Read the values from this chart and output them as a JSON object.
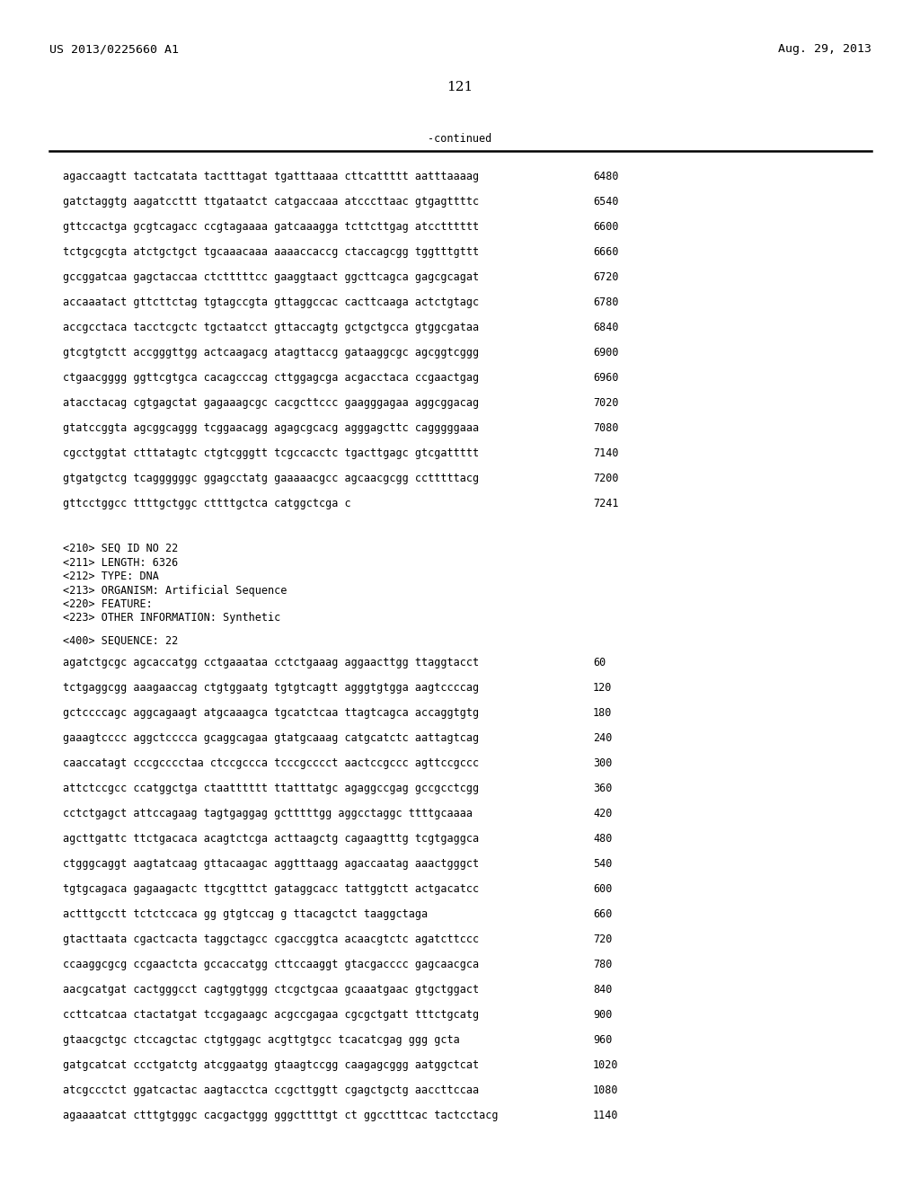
{
  "header_left": "US 2013/0225660 A1",
  "header_right": "Aug. 29, 2013",
  "page_number": "121",
  "continued_text": "-continued",
  "background_color": "#ffffff",
  "text_color": "#000000",
  "font_size_header": 9.5,
  "font_size_body": 8.5,
  "font_size_page": 11.0,
  "sequence_lines_top": [
    [
      "agaccaagtt tactcatata tactttagat tgatttaaaa cttcattttt aatttaaaag",
      "6480"
    ],
    [
      "gatctaggtg aagatccttt ttgataatct catgaccaaa atcccttaac gtgagttttc",
      "6540"
    ],
    [
      "gttccactga gcgtcagacc ccgtagaaaa gatcaaagga tcttcttgag atcctttttt",
      "6600"
    ],
    [
      "tctgcgcgta atctgctgct tgcaaacaaa aaaaccaccg ctaccagcgg tggtttgttt",
      "6660"
    ],
    [
      "gccggatcaa gagctaccaa ctctttttcc gaaggtaact ggcttcagca gagcgcagat",
      "6720"
    ],
    [
      "accaaatact gttcttctag tgtagccgta gttaggccac cacttcaaga actctgtagc",
      "6780"
    ],
    [
      "accgcctaca tacctcgctc tgctaatcct gttaccagtg gctgctgcca gtggcgataa",
      "6840"
    ],
    [
      "gtcgtgtctt accgggttgg actcaagacg atagttaccg gataaggcgc agcggtcggg",
      "6900"
    ],
    [
      "ctgaacgggg ggttcgtgca cacagcccag cttggagcga acgacctaca ccgaactgag",
      "6960"
    ],
    [
      "atacctacag cgtgagctat gagaaagcgc cacgcttccc gaagggagaa aggcggacag",
      "7020"
    ],
    [
      "gtatccggta agcggcaggg tcggaacagg agagcgcacg agggagcttc cagggggaaa",
      "7080"
    ],
    [
      "cgcctggtat ctttatagtc ctgtcgggtt tcgccacctc tgacttgagc gtcgattttt",
      "7140"
    ],
    [
      "gtgatgctcg tcaggggggc ggagcctatg gaaaaacgcc agcaacgcgg cctttttacg",
      "7200"
    ],
    [
      "gttcctggcc ttttgctggc cttttgctca catggctcga c",
      "7241"
    ]
  ],
  "metadata_lines": [
    "<210> SEQ ID NO 22",
    "<211> LENGTH: 6326",
    "<212> TYPE: DNA",
    "<213> ORGANISM: Artificial Sequence",
    "<220> FEATURE:",
    "<223> OTHER INFORMATION: Synthetic"
  ],
  "sequence_label": "<400> SEQUENCE: 22",
  "sequence_lines_bottom": [
    [
      "agatctgcgc agcaccatgg cctgaaataa cctctgaaag aggaacttgg ttaggtacct",
      "60"
    ],
    [
      "tctgaggcgg aaagaaccag ctgtggaatg tgtgtcagtt agggtgtgga aagtccccag",
      "120"
    ],
    [
      "gctccccagc aggcagaagt atgcaaagca tgcatctcaa ttagtcagca accaggtgtg",
      "180"
    ],
    [
      "gaaagtcccc aggctcccca gcaggcagaa gtatgcaaag catgcatctc aattagtcag",
      "240"
    ],
    [
      "caaccatagt cccgcccctaa ctccgccca tcccgcccct aactccgccc agttccgccc",
      "300"
    ],
    [
      "attctccgcc ccatggctga ctaatttttt ttatttatgc agaggccgag gccgcctcgg",
      "360"
    ],
    [
      "cctctgagct attccagaag tagtgaggag gctttttgg aggcctaggc ttttgcaaaa",
      "420"
    ],
    [
      "agcttgattc ttctgacaca acagtctcga acttaagctg cagaagtttg tcgtgaggca",
      "480"
    ],
    [
      "ctgggcaggt aagtatcaag gttacaagac aggtttaagg agaccaatag aaactgggct",
      "540"
    ],
    [
      "tgtgcagaca gagaagactc ttgcgtttct gataggcacc tattggtctt actgacatcc",
      "600"
    ],
    [
      "actttgcctt tctctccaca gg gtgtccag g ttacagctct taaggctaga",
      "660"
    ],
    [
      "gtacttaata cgactcacta taggctagcc cgaccggtca acaacgtctc agatcttccc",
      "720"
    ],
    [
      "ccaaggcgcg ccgaactcta gccaccatgg cttccaaggt gtacgacccc gagcaacgca",
      "780"
    ],
    [
      "aacgcatgat cactgggcct cagtggtggg ctcgctgcaa gcaaatgaac gtgctggact",
      "840"
    ],
    [
      "ccttcatcaa ctactatgat tccgagaagc acgccgagaa cgcgctgatt tttctgcatg",
      "900"
    ],
    [
      "gtaacgctgc ctccagctac ctgtggagc acgttgtgcc tcacatcgag ggg gcta",
      "960"
    ],
    [
      "gatgcatcat ccctgatctg atcggaatgg gtaagtccgg caagagcggg aatggctcat",
      "1020"
    ],
    [
      "atcgccctct ggatcactac aagtacctca ccgcttggtt cgagctgctg aaccttccaa",
      "1080"
    ],
    [
      "agaaaatcat ctttgtgggc cacgactggg gggcttttgt ct ggcctttcac tactcctacg",
      "1140"
    ]
  ]
}
